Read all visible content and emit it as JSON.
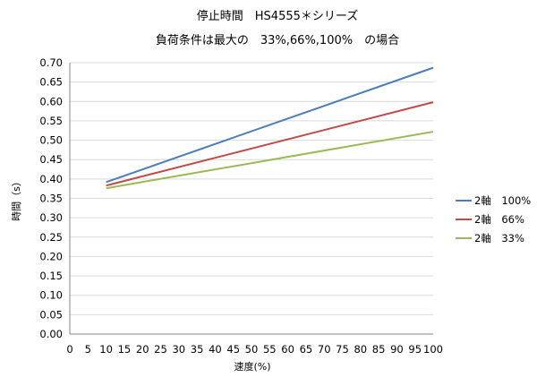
{
  "chart_data": {
    "type": "line",
    "title": "停止時間　HS4555＊シリーズ",
    "subtitle": "負荷条件は最大の　33%,66%,100%　の場合",
    "xlabel": "速度(%)",
    "ylabel": "時間（s）",
    "xlim": [
      0,
      100
    ],
    "ylim": [
      0,
      0.7
    ],
    "x_ticks": [
      "0",
      "5",
      "10",
      "15",
      "20",
      "25",
      "30",
      "35",
      "40",
      "45",
      "50",
      "55",
      "60",
      "65",
      "70",
      "75",
      "80",
      "85",
      "90",
      "95",
      "100"
    ],
    "y_ticks": [
      "0.00",
      "0.05",
      "0.10",
      "0.15",
      "0.20",
      "0.25",
      "0.30",
      "0.35",
      "0.40",
      "0.45",
      "0.50",
      "0.55",
      "0.60",
      "0.65",
      "0.70"
    ],
    "grid": "horizontal",
    "legend_position": "right",
    "series": [
      {
        "name": "2軸　100%",
        "color": "#4a7ebb",
        "x": [
          10,
          100
        ],
        "y": [
          0.392,
          0.687
        ]
      },
      {
        "name": "2軸　66%",
        "color": "#be4b48",
        "x": [
          10,
          100
        ],
        "y": [
          0.383,
          0.598
        ]
      },
      {
        "name": "2軸　33%",
        "color": "#98b954",
        "x": [
          10,
          100
        ],
        "y": [
          0.376,
          0.522
        ]
      }
    ]
  }
}
